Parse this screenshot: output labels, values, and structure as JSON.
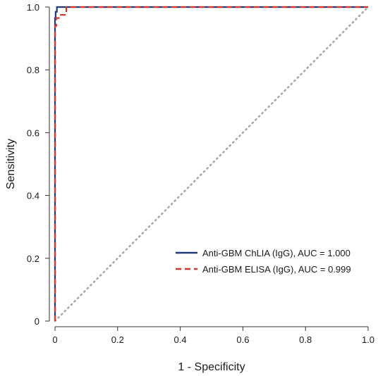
{
  "chart_data": {
    "type": "line",
    "title": "",
    "xlabel": "1 - Specificity",
    "ylabel": "Sensitivity",
    "xlim": [
      0,
      1
    ],
    "ylim": [
      0,
      1
    ],
    "x_ticks": [
      0,
      0.2,
      0.4,
      0.6,
      0.8,
      1.0
    ],
    "x_tick_labels": [
      "0",
      "0.2",
      "0.4",
      "0.6",
      "0.8",
      "1.0"
    ],
    "y_ticks": [
      0,
      0.2,
      0.4,
      0.6,
      0.8,
      1.0
    ],
    "y_tick_labels": [
      "0",
      "0.2",
      "0.4",
      "0.6",
      "0.8",
      "1.0"
    ],
    "grid": false,
    "legend_position": "bottom-right",
    "reference_line": {
      "style": "dotted",
      "color": "#a6a6a6",
      "x": [
        0,
        1
      ],
      "y": [
        0,
        1
      ]
    },
    "series": [
      {
        "name": "Anti-GBM ChLIA (IgG), AUC = 1.000",
        "color": "#1f3a7a",
        "style": "solid",
        "x": [
          0,
          0,
          0.002,
          0.002,
          0.006,
          0.006,
          1.0
        ],
        "y": [
          0,
          0.965,
          0.965,
          0.985,
          0.985,
          1.0,
          1.0
        ]
      },
      {
        "name": "Anti-GBM ELISA (IgG), AUC = 0.999",
        "color": "#d9342b",
        "style": "dashed",
        "x": [
          0,
          0,
          0.004,
          0.004,
          0.016,
          0.016,
          0.036,
          0.036,
          1.0
        ],
        "y": [
          0,
          0.94,
          0.94,
          0.965,
          0.965,
          0.975,
          0.975,
          1.0,
          1.0
        ]
      }
    ]
  }
}
